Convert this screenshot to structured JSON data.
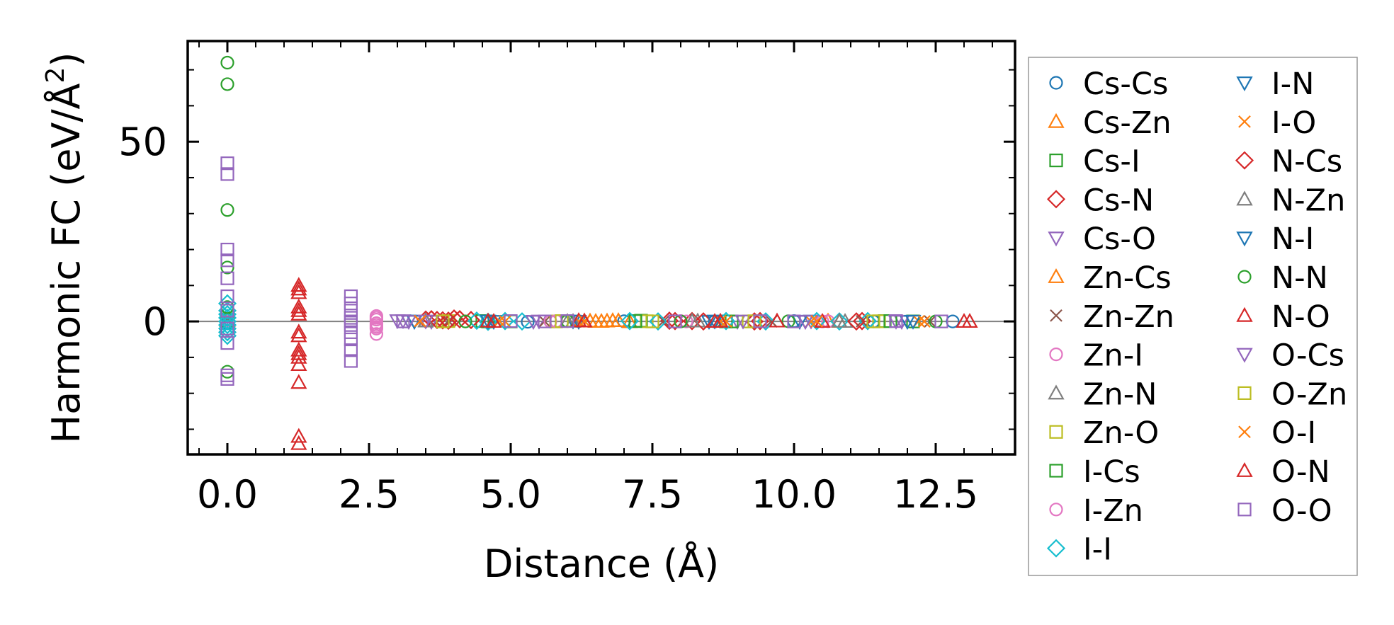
{
  "chart_data": {
    "type": "scatter",
    "xlabel": "Distance (Å)",
    "ylabel_main": "Harmonic FC (eV/Å",
    "ylabel_sup": "2",
    "ylabel_close": ")",
    "xlim": [
      -0.7,
      13.9
    ],
    "ylim": [
      -37,
      78
    ],
    "x_ticks": [
      0.0,
      2.5,
      5.0,
      7.5,
      10.0,
      12.5
    ],
    "x_tick_labels": [
      "0.0",
      "2.5",
      "5.0",
      "7.5",
      "10.0",
      "12.5"
    ],
    "y_ticks": [
      0,
      50
    ],
    "y_tick_labels": [
      "0",
      "50"
    ],
    "x_minor_step": 0.5,
    "y_minor_step": 10,
    "zero_line": true,
    "legend_position": "outside-right",
    "series": [
      {
        "name": "Cs-Cs",
        "marker": "circle",
        "color": "#1f77b4",
        "points": [
          [
            0,
            0.5
          ],
          [
            0,
            -0.5
          ],
          [
            3.9,
            0.1
          ],
          [
            5.3,
            -0.1
          ],
          [
            7.0,
            0.05
          ],
          [
            8.6,
            0.0
          ],
          [
            10.0,
            0.1
          ],
          [
            11.4,
            0.0
          ],
          [
            12.8,
            0.0
          ]
        ]
      },
      {
        "name": "Cs-Zn",
        "marker": "triangle-up",
        "color": "#ff7f0e",
        "points": [
          [
            0,
            0.3
          ],
          [
            6.4,
            0.1
          ],
          [
            6.6,
            0
          ],
          [
            6.8,
            0.2
          ],
          [
            7.1,
            -0.1
          ],
          [
            10.6,
            0.1
          ]
        ]
      },
      {
        "name": "Cs-I",
        "marker": "square",
        "color": "#2ca02c",
        "points": [
          [
            0,
            0.6
          ],
          [
            4.5,
            0.1
          ],
          [
            5.0,
            0
          ],
          [
            7.3,
            0.2
          ],
          [
            8.8,
            0
          ],
          [
            11.6,
            0.1
          ],
          [
            12.1,
            0
          ]
        ]
      },
      {
        "name": "Cs-N",
        "marker": "diamond",
        "color": "#d62728",
        "points": [
          [
            3.6,
            0.6
          ],
          [
            3.8,
            0.3
          ],
          [
            4.0,
            0.8
          ],
          [
            4.3,
            0.4
          ],
          [
            7.8,
            0.2
          ],
          [
            8.2,
            0.1
          ],
          [
            9.3,
            0
          ],
          [
            11.2,
            0.1
          ]
        ]
      },
      {
        "name": "Cs-O",
        "marker": "triangle-down",
        "color": "#9467bd",
        "points": [
          [
            3.1,
            0.2
          ],
          [
            3.3,
            0.1
          ],
          [
            3.6,
            0
          ],
          [
            5.5,
            0.1
          ],
          [
            9.0,
            0
          ],
          [
            10.3,
            0.1
          ],
          [
            11.9,
            0
          ]
        ]
      },
      {
        "name": "Zn-Cs",
        "marker": "triangle-up",
        "color": "#ff7f0e",
        "points": [
          [
            0,
            0.2
          ],
          [
            6.3,
            0.1
          ],
          [
            6.5,
            0
          ],
          [
            6.7,
            0.1
          ],
          [
            6.9,
            0.2
          ],
          [
            10.8,
            0
          ]
        ]
      },
      {
        "name": "Zn-Zn",
        "marker": "x",
        "color": "#8c564b",
        "points": [
          [
            0,
            0.4
          ],
          [
            3.9,
            0.1
          ],
          [
            5.6,
            0
          ],
          [
            7.7,
            0.1
          ],
          [
            9.6,
            0
          ],
          [
            11.2,
            0.05
          ],
          [
            12.4,
            0
          ]
        ]
      },
      {
        "name": "Zn-I",
        "marker": "circle",
        "color": "#e377c2",
        "points": [
          [
            0,
            0.5
          ],
          [
            2.63,
            1.5
          ],
          [
            2.63,
            -0.5
          ],
          [
            2.63,
            -2.0
          ],
          [
            2.63,
            -3.5
          ],
          [
            2.63,
            0.5
          ],
          [
            2.63,
            -1.0
          ],
          [
            5.7,
            0
          ],
          [
            8.0,
            0.1
          ],
          [
            10.5,
            0
          ]
        ]
      },
      {
        "name": "Zn-N",
        "marker": "triangle-up",
        "color": "#7f7f7f",
        "points": [
          [
            0,
            0.3
          ],
          [
            3.5,
            0.1
          ],
          [
            6.0,
            0
          ],
          [
            8.3,
            0.1
          ],
          [
            10.9,
            0
          ]
        ]
      },
      {
        "name": "Zn-O",
        "marker": "square",
        "color": "#bcbd22",
        "points": [
          [
            0,
            0.4
          ],
          [
            3.9,
            0.1
          ],
          [
            5.8,
            0
          ],
          [
            7.4,
            0.05
          ],
          [
            9.2,
            0
          ],
          [
            11.5,
            0.05
          ]
        ]
      },
      {
        "name": "I-Cs",
        "marker": "square",
        "color": "#2ca02c",
        "points": [
          [
            0,
            0.3
          ],
          [
            4.6,
            0
          ],
          [
            7.2,
            0.1
          ],
          [
            8.9,
            0
          ],
          [
            11.7,
            0.1
          ]
        ]
      },
      {
        "name": "I-Zn",
        "marker": "circle",
        "color": "#e377c2",
        "points": [
          [
            0,
            0.2
          ],
          [
            2.63,
            1.0
          ],
          [
            2.63,
            -1.5
          ],
          [
            5.8,
            0.1
          ],
          [
            8.1,
            0
          ],
          [
            10.6,
            0.05
          ]
        ]
      },
      {
        "name": "I-I",
        "marker": "diamond",
        "color": "#17becf",
        "points": [
          [
            0,
            5
          ],
          [
            0,
            3
          ],
          [
            0,
            2
          ],
          [
            0,
            1
          ],
          [
            0,
            0
          ],
          [
            0,
            -1
          ],
          [
            0,
            -2
          ],
          [
            0,
            -3
          ],
          [
            0,
            -4
          ],
          [
            4.4,
            0.2
          ],
          [
            4.6,
            -0.1
          ],
          [
            4.9,
            0.1
          ],
          [
            5.2,
            0
          ],
          [
            7.1,
            0.1
          ],
          [
            7.6,
            0
          ],
          [
            8.8,
            0.1
          ],
          [
            9.5,
            0
          ],
          [
            10.4,
            0.1
          ],
          [
            10.8,
            0
          ],
          [
            11.3,
            0.1
          ]
        ]
      },
      {
        "name": "I-N",
        "marker": "triangle-down",
        "color": "#1f77b4",
        "points": [
          [
            3.2,
            0.1
          ],
          [
            4.7,
            0
          ],
          [
            6.1,
            0.1
          ],
          [
            8.5,
            0
          ],
          [
            10.2,
            0.05
          ],
          [
            12.0,
            0
          ]
        ]
      },
      {
        "name": "I-O",
        "marker": "x",
        "color": "#ff7f0e",
        "points": [
          [
            3.4,
            0
          ],
          [
            4.8,
            0.1
          ],
          [
            6.2,
            0
          ],
          [
            8.7,
            0.05
          ],
          [
            10.3,
            0
          ],
          [
            12.2,
            0.05
          ]
        ]
      },
      {
        "name": "N-Cs",
        "marker": "diamond",
        "color": "#d62728",
        "points": [
          [
            3.5,
            0.5
          ],
          [
            3.7,
            0.4
          ],
          [
            3.9,
            0.2
          ],
          [
            4.1,
            0.6
          ],
          [
            7.9,
            0.1
          ],
          [
            8.4,
            0
          ],
          [
            9.4,
            0.1
          ],
          [
            11.1,
            0
          ]
        ]
      },
      {
        "name": "N-Zn",
        "marker": "triangle-up",
        "color": "#7f7f7f",
        "points": [
          [
            3.5,
            0.2
          ],
          [
            6.1,
            0
          ],
          [
            8.2,
            0.1
          ],
          [
            10.8,
            0.05
          ]
        ]
      },
      {
        "name": "N-I",
        "marker": "triangle-down",
        "color": "#1f77b4",
        "points": [
          [
            3.3,
            0
          ],
          [
            4.6,
            0.1
          ],
          [
            6.2,
            0
          ],
          [
            8.6,
            0.1
          ],
          [
            10.1,
            0
          ],
          [
            12.1,
            0.05
          ]
        ]
      },
      {
        "name": "N-N",
        "marker": "circle",
        "color": "#2ca02c",
        "points": [
          [
            0,
            72
          ],
          [
            0,
            66
          ],
          [
            0,
            31
          ],
          [
            0,
            15
          ],
          [
            0,
            -14
          ],
          [
            0,
            4
          ],
          [
            4.2,
            0
          ],
          [
            6.0,
            0.1
          ],
          [
            8.0,
            0
          ],
          [
            9.9,
            0.05
          ],
          [
            12.5,
            0
          ]
        ]
      },
      {
        "name": "N-O",
        "marker": "triangle-up",
        "color": "#d62728",
        "points": [
          [
            1.26,
            10
          ],
          [
            1.26,
            8
          ],
          [
            1.26,
            4
          ],
          [
            1.26,
            3
          ],
          [
            1.26,
            -3
          ],
          [
            1.26,
            -4
          ],
          [
            1.26,
            -8
          ],
          [
            1.26,
            -10
          ],
          [
            1.26,
            -12
          ],
          [
            1.26,
            -17
          ],
          [
            1.26,
            -32
          ],
          [
            1.26,
            -34
          ],
          [
            4.6,
            0.1
          ],
          [
            6.2,
            0.2
          ],
          [
            8.6,
            0
          ],
          [
            9.7,
            0.1
          ],
          [
            10.5,
            0
          ],
          [
            13.1,
            0
          ]
        ]
      },
      {
        "name": "O-Cs",
        "marker": "triangle-down",
        "color": "#9467bd",
        "points": [
          [
            3.0,
            0.2
          ],
          [
            3.2,
            0
          ],
          [
            3.5,
            0.1
          ],
          [
            5.4,
            0
          ],
          [
            9.1,
            0.1
          ],
          [
            10.2,
            0
          ],
          [
            11.8,
            0.05
          ]
        ]
      },
      {
        "name": "O-Zn",
        "marker": "square",
        "color": "#bcbd22",
        "points": [
          [
            3.8,
            0
          ],
          [
            5.9,
            0.1
          ],
          [
            7.5,
            0
          ],
          [
            9.3,
            0.05
          ],
          [
            11.4,
            0
          ]
        ]
      },
      {
        "name": "O-I",
        "marker": "x",
        "color": "#ff7f0e",
        "points": [
          [
            3.4,
            0.1
          ],
          [
            4.9,
            0
          ],
          [
            6.3,
            0.1
          ],
          [
            8.8,
            0
          ],
          [
            10.4,
            0.05
          ],
          [
            12.3,
            0
          ]
        ]
      },
      {
        "name": "O-N",
        "marker": "triangle-up",
        "color": "#d62728",
        "points": [
          [
            1.26,
            9
          ],
          [
            1.26,
            2
          ],
          [
            1.26,
            -9
          ],
          [
            4.7,
            0
          ],
          [
            6.3,
            0.1
          ],
          [
            8.7,
            0.05
          ],
          [
            13.0,
            0
          ]
        ]
      },
      {
        "name": "O-O",
        "marker": "square",
        "color": "#9467bd",
        "points": [
          [
            0,
            44
          ],
          [
            0,
            41
          ],
          [
            0,
            20
          ],
          [
            0,
            17
          ],
          [
            0,
            12
          ],
          [
            0,
            7
          ],
          [
            0,
            3
          ],
          [
            0,
            -2
          ],
          [
            0,
            -6
          ],
          [
            0,
            -15
          ],
          [
            0,
            -16
          ],
          [
            2.18,
            7
          ],
          [
            2.18,
            5
          ],
          [
            2.18,
            3
          ],
          [
            2.18,
            1
          ],
          [
            2.18,
            0
          ],
          [
            2.18,
            -1
          ],
          [
            2.18,
            -3
          ],
          [
            2.18,
            -5
          ],
          [
            2.18,
            -8
          ],
          [
            2.18,
            -11
          ],
          [
            3.1,
            0
          ],
          [
            5.0,
            0.1
          ],
          [
            5.6,
            0
          ],
          [
            6.0,
            0.1
          ],
          [
            7.9,
            0
          ],
          [
            9.4,
            0.05
          ],
          [
            10.0,
            0
          ],
          [
            11.8,
            0.1
          ],
          [
            12.6,
            0
          ]
        ]
      }
    ]
  }
}
